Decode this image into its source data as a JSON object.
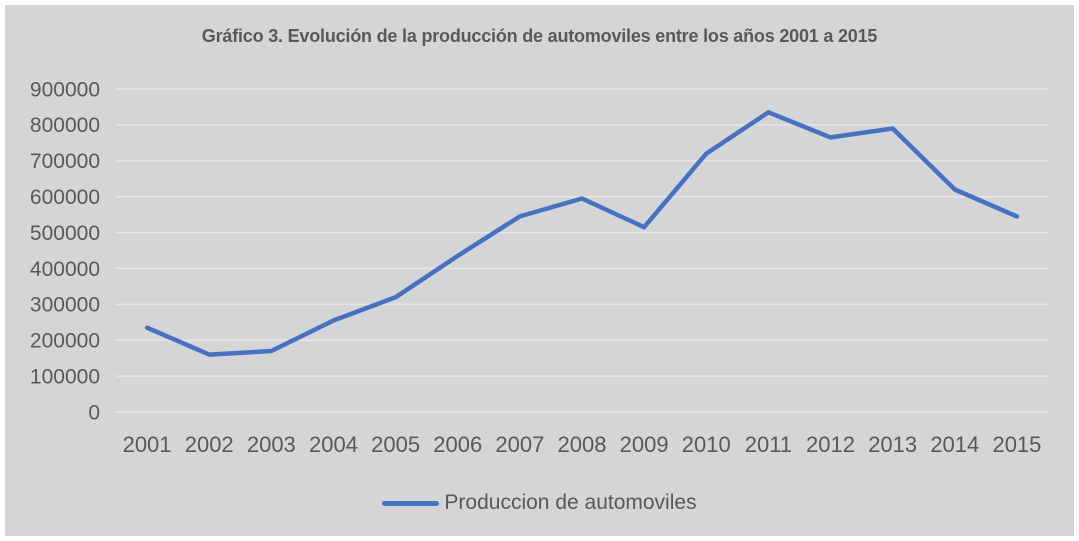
{
  "chart_data": {
    "type": "line",
    "title": "Gráfico 3. Evolución de la producción de automoviles entre los años 2001 a 2015",
    "categories": [
      "2001",
      "2002",
      "2003",
      "2004",
      "2005",
      "2006",
      "2007",
      "2008",
      "2009",
      "2010",
      "2011",
      "2012",
      "2013",
      "2014",
      "2015"
    ],
    "series": [
      {
        "name": "Produccion de automoviles",
        "color": "#4472C4",
        "values": [
          235000,
          160000,
          170000,
          255000,
          320000,
          435000,
          545000,
          595000,
          515000,
          720000,
          835000,
          765000,
          790000,
          620000,
          545000
        ]
      }
    ],
    "xlabel": "",
    "ylabel": "",
    "ylim": [
      0,
      900000
    ],
    "ytick_step": 100000,
    "yticks": [
      0,
      100000,
      200000,
      300000,
      400000,
      500000,
      600000,
      700000,
      800000,
      900000
    ],
    "grid": true,
    "legend_position": "bottom"
  },
  "colors": {
    "panel_background": "#d5d5d5",
    "frame_background": "#ffffff",
    "grid": "#e7e7e7",
    "text": "#595959",
    "series": "#4472C4"
  }
}
